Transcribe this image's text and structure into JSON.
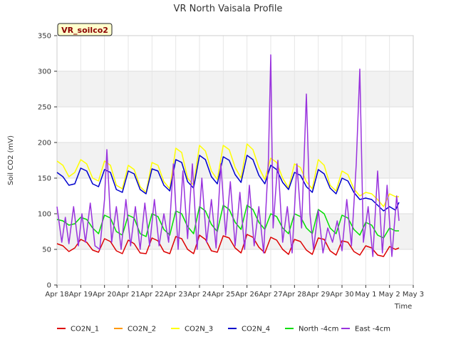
{
  "chart_data": {
    "type": "line",
    "title": "VR North Vaisala Profile",
    "site_label": "VR_soilco2",
    "xlabel": "Time",
    "ylabel": "Soil CO2 (mV)",
    "ylim": [
      0,
      350
    ],
    "yticks": [
      0,
      50,
      100,
      150,
      200,
      250,
      300,
      350
    ],
    "x_ticks": [
      "Apr 18",
      "Apr 19",
      "Apr 20",
      "Apr 21",
      "Apr 22",
      "Apr 23",
      "Apr 24",
      "Apr 25",
      "Apr 26",
      "Apr 27",
      "Apr 28",
      "Apr 29",
      "Apr 30",
      "May 1",
      "May 2",
      "May 3"
    ],
    "grid": true,
    "legend_position": "bottom",
    "series": [
      {
        "name": "CO2N_1",
        "color": "#dd0000",
        "x": [
          0,
          0.25,
          0.5,
          0.75,
          1,
          1.25,
          1.5,
          1.75,
          2,
          2.25,
          2.5,
          2.75,
          3,
          3.25,
          3.5,
          3.75,
          4,
          4.25,
          4.5,
          4.75,
          5,
          5.25,
          5.5,
          5.75,
          6,
          6.25,
          6.5,
          6.75,
          7,
          7.25,
          7.5,
          7.75,
          8,
          8.25,
          8.5,
          8.75,
          9,
          9.25,
          9.5,
          9.75,
          10,
          10.25,
          10.5,
          10.75,
          11,
          11.25,
          11.5,
          11.75,
          12,
          12.25,
          12.5,
          12.75,
          13,
          13.25,
          13.5,
          13.75,
          14,
          14.25,
          14.4
        ],
        "y": [
          58,
          55,
          47,
          52,
          64,
          60,
          49,
          46,
          65,
          61,
          48,
          44,
          63,
          58,
          45,
          44,
          66,
          62,
          47,
          44,
          68,
          65,
          50,
          44,
          70,
          64,
          48,
          46,
          69,
          66,
          52,
          45,
          71,
          67,
          53,
          45,
          67,
          63,
          50,
          43,
          64,
          61,
          49,
          43,
          66,
          64,
          48,
          42,
          62,
          60,
          47,
          42,
          55,
          52,
          42,
          40,
          54,
          50,
          52
        ]
      },
      {
        "name": "CO2N_2",
        "color": "#ff9900",
        "x": [],
        "y": []
      },
      {
        "name": "CO2N_3",
        "color": "#ffff00",
        "x": [
          0,
          0.25,
          0.5,
          0.75,
          1,
          1.25,
          1.5,
          1.75,
          2,
          2.25,
          2.5,
          2.75,
          3,
          3.25,
          3.5,
          3.75,
          4,
          4.25,
          4.5,
          4.75,
          5,
          5.25,
          5.5,
          5.75,
          6,
          6.25,
          6.5,
          6.75,
          7,
          7.25,
          7.5,
          7.75,
          8,
          8.25,
          8.5,
          8.75,
          9,
          9.25,
          9.5,
          9.75,
          10,
          10.25,
          10.5,
          10.75,
          11,
          11.25,
          11.5,
          11.75,
          12,
          12.25,
          12.5,
          12.75,
          13,
          13.25,
          13.5,
          13.75,
          14,
          14.25,
          14.4
        ],
        "y": [
          174,
          168,
          152,
          158,
          176,
          170,
          150,
          146,
          174,
          168,
          140,
          135,
          168,
          162,
          138,
          130,
          172,
          168,
          145,
          135,
          192,
          186,
          150,
          140,
          196,
          188,
          160,
          148,
          196,
          190,
          165,
          150,
          198,
          190,
          165,
          148,
          178,
          172,
          150,
          136,
          170,
          165,
          145,
          135,
          176,
          168,
          140,
          132,
          160,
          155,
          135,
          125,
          130,
          128,
          120,
          110,
          128,
          124,
          124
        ]
      },
      {
        "name": "CO2N_4",
        "color": "#0000cc",
        "x": [
          0,
          0.25,
          0.5,
          0.75,
          1,
          1.25,
          1.5,
          1.75,
          2,
          2.25,
          2.5,
          2.75,
          3,
          3.25,
          3.5,
          3.75,
          4,
          4.25,
          4.5,
          4.75,
          5,
          5.25,
          5.5,
          5.75,
          6,
          6.25,
          6.5,
          6.75,
          7,
          7.25,
          7.5,
          7.75,
          8,
          8.25,
          8.5,
          8.75,
          9,
          9.25,
          9.5,
          9.75,
          10,
          10.25,
          10.5,
          10.75,
          11,
          11.25,
          11.5,
          11.75,
          12,
          12.25,
          12.5,
          12.75,
          13,
          13.25,
          13.5,
          13.75,
          14,
          14.25,
          14.4
        ],
        "y": [
          158,
          152,
          140,
          142,
          164,
          160,
          142,
          138,
          162,
          158,
          134,
          130,
          160,
          156,
          134,
          128,
          163,
          160,
          140,
          132,
          176,
          172,
          145,
          136,
          182,
          176,
          152,
          142,
          180,
          175,
          155,
          144,
          182,
          176,
          154,
          142,
          168,
          162,
          144,
          134,
          158,
          154,
          138,
          130,
          162,
          156,
          136,
          128,
          150,
          146,
          130,
          120,
          122,
          120,
          112,
          104,
          110,
          105,
          116
        ]
      },
      {
        "name": "North -4cm",
        "color": "#00dd00",
        "x": [
          0,
          0.25,
          0.5,
          0.75,
          1,
          1.25,
          1.5,
          1.75,
          2,
          2.25,
          2.5,
          2.75,
          3,
          3.25,
          3.5,
          3.75,
          4,
          4.25,
          4.5,
          4.75,
          5,
          5.25,
          5.5,
          5.75,
          6,
          6.25,
          6.5,
          6.75,
          7,
          7.25,
          7.5,
          7.75,
          8,
          8.25,
          8.5,
          8.75,
          9,
          9.25,
          9.5,
          9.75,
          10,
          10.25,
          10.5,
          10.75,
          11,
          11.25,
          11.5,
          11.75,
          12,
          12.25,
          12.5,
          12.75,
          13,
          13.25,
          13.5,
          13.75,
          14,
          14.25,
          14.4
        ],
        "y": [
          92,
          90,
          84,
          86,
          95,
          92,
          80,
          72,
          98,
          94,
          75,
          70,
          98,
          94,
          72,
          68,
          100,
          96,
          78,
          70,
          104,
          100,
          82,
          72,
          110,
          104,
          85,
          75,
          112,
          106,
          88,
          78,
          112,
          106,
          88,
          78,
          100,
          96,
          80,
          72,
          100,
          96,
          80,
          72,
          106,
          100,
          80,
          72,
          98,
          94,
          78,
          70,
          88,
          84,
          70,
          66,
          80,
          76,
          76
        ]
      },
      {
        "name": "East -4cm",
        "color": "#9933dd",
        "x": [
          0,
          0.2,
          0.35,
          0.5,
          0.7,
          0.9,
          1.05,
          1.2,
          1.4,
          1.6,
          1.8,
          2.0,
          2.1,
          2.3,
          2.5,
          2.7,
          2.9,
          3.1,
          3.3,
          3.5,
          3.7,
          3.9,
          4.1,
          4.3,
          4.5,
          4.7,
          4.9,
          5.1,
          5.3,
          5.5,
          5.7,
          5.9,
          6.1,
          6.3,
          6.5,
          6.7,
          6.9,
          7.1,
          7.3,
          7.5,
          7.7,
          7.9,
          8.1,
          8.3,
          8.5,
          8.7,
          8.9,
          9.0,
          9.1,
          9.3,
          9.5,
          9.7,
          9.9,
          10.1,
          10.3,
          10.5,
          10.65,
          10.8,
          11.0,
          11.2,
          11.4,
          11.6,
          11.8,
          12.0,
          12.2,
          12.4,
          12.6,
          12.75,
          12.9,
          13.1,
          13.3,
          13.5,
          13.7,
          13.9,
          14.1,
          14.3,
          14.4
        ],
        "y": [
          110,
          60,
          95,
          58,
          110,
          55,
          100,
          60,
          115,
          55,
          50,
          120,
          190,
          60,
          110,
          50,
          120,
          55,
          110,
          50,
          115,
          55,
          120,
          55,
          100,
          60,
          170,
          50,
          160,
          65,
          170,
          50,
          150,
          60,
          120,
          52,
          170,
          70,
          145,
          55,
          130,
          50,
          140,
          55,
          110,
          45,
          175,
          323,
          80,
          175,
          60,
          110,
          45,
          170,
          80,
          268,
          100,
          50,
          105,
          45,
          80,
          60,
          90,
          48,
          120,
          55,
          170,
          303,
          60,
          110,
          40,
          160,
          45,
          140,
          40,
          125,
          90
        ]
      }
    ]
  }
}
